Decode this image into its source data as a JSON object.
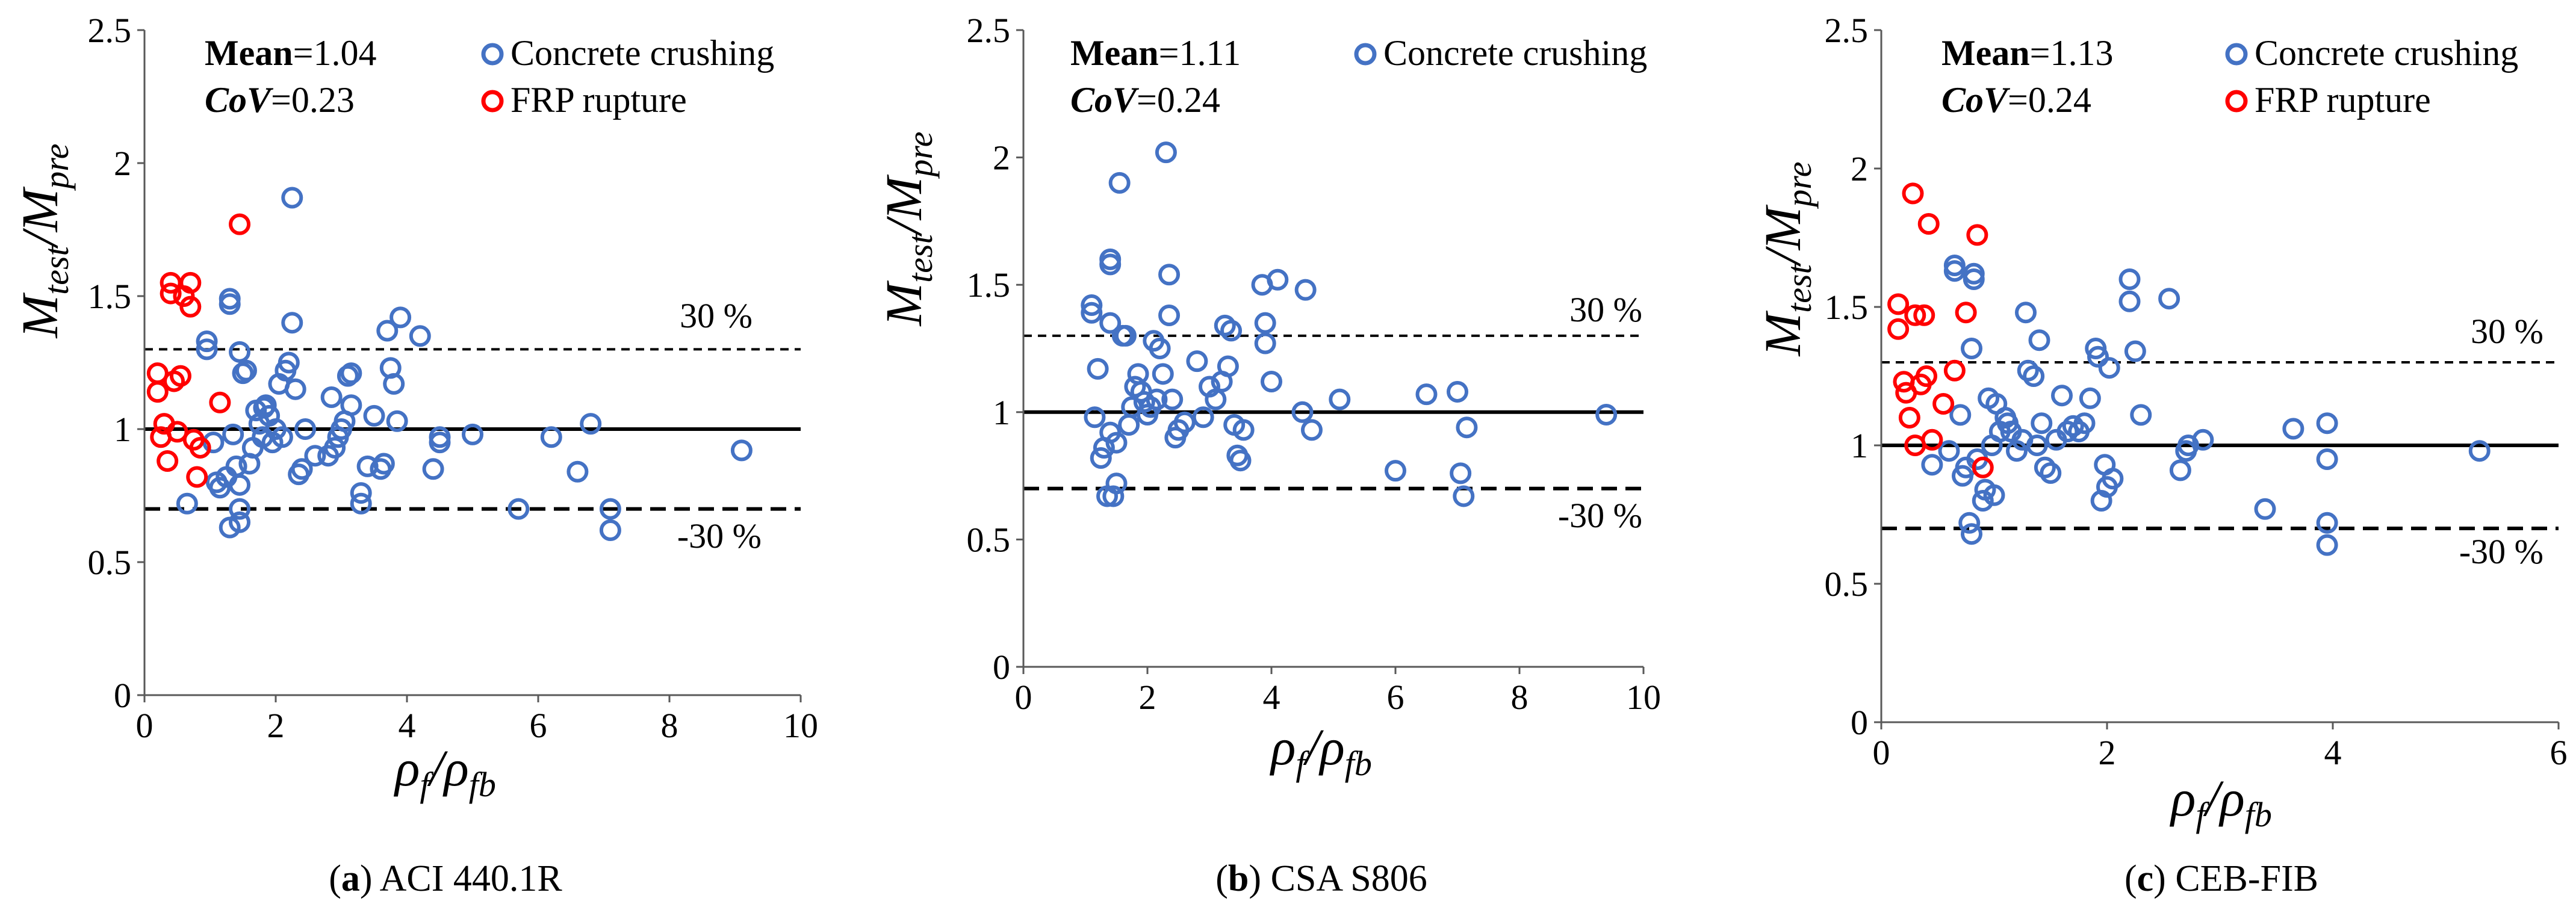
{
  "colors": {
    "crushing": "#4472C4",
    "rupture": "#FF0000",
    "axis": "#000000"
  },
  "chart_data": [
    {
      "type": "scatter",
      "caption_letter": "a",
      "caption": "ACI 440.1R",
      "xlabel": "ρf/ρfb",
      "ylabel": "Mtest/Mpre",
      "xlim": [
        0,
        10
      ],
      "ylim": [
        0,
        2.5
      ],
      "xticks": [
        "0",
        "2",
        "4",
        "6",
        "8",
        "10"
      ],
      "yticks": [
        "0",
        "0.5",
        "1",
        "1.5",
        "2",
        "2.5"
      ],
      "stats": {
        "mean_label": "Mean",
        "mean_value": "=1.04",
        "cov_label": "CoV",
        "cov_value": "=0.23"
      },
      "reference_lines": {
        "mean": 1.0,
        "upper": 1.3,
        "lower": 0.7,
        "upper_label": "30 %",
        "lower_label": "-30 %"
      },
      "series": [
        {
          "name": "Concrete crushing",
          "color_key": "crushing",
          "points": [
            [
              0.65,
              0.72
            ],
            [
              0.95,
              1.33
            ],
            [
              0.95,
              1.3
            ],
            [
              1.05,
              0.95
            ],
            [
              1.1,
              0.8
            ],
            [
              1.15,
              0.78
            ],
            [
              1.25,
              0.82
            ],
            [
              1.3,
              1.47
            ],
            [
              1.3,
              1.49
            ],
            [
              1.3,
              0.63
            ],
            [
              1.35,
              0.98
            ],
            [
              1.4,
              0.86
            ],
            [
              1.45,
              0.7
            ],
            [
              1.45,
              0.79
            ],
            [
              1.45,
              0.65
            ],
            [
              1.45,
              1.29
            ],
            [
              1.5,
              1.21
            ],
            [
              1.55,
              1.22
            ],
            [
              1.6,
              0.87
            ],
            [
              1.65,
              0.93
            ],
            [
              1.7,
              1.07
            ],
            [
              1.75,
              1.02
            ],
            [
              1.8,
              0.97
            ],
            [
              1.82,
              1.08
            ],
            [
              1.85,
              1.09
            ],
            [
              1.9,
              1.05
            ],
            [
              1.95,
              0.95
            ],
            [
              2.0,
              1.0
            ],
            [
              2.05,
              1.17
            ],
            [
              2.1,
              0.97
            ],
            [
              2.15,
              1.22
            ],
            [
              2.2,
              1.25
            ],
            [
              2.25,
              1.87
            ],
            [
              2.25,
              1.4
            ],
            [
              2.3,
              1.15
            ],
            [
              2.35,
              0.83
            ],
            [
              2.4,
              0.85
            ],
            [
              2.45,
              1.0
            ],
            [
              2.6,
              0.9
            ],
            [
              2.8,
              0.9
            ],
            [
              2.85,
              1.12
            ],
            [
              2.9,
              0.93
            ],
            [
              2.95,
              0.97
            ],
            [
              3.0,
              1.0
            ],
            [
              3.05,
              1.03
            ],
            [
              3.1,
              1.2
            ],
            [
              3.15,
              1.09
            ],
            [
              3.15,
              1.21
            ],
            [
              3.3,
              0.72
            ],
            [
              3.3,
              0.76
            ],
            [
              3.4,
              0.86
            ],
            [
              3.5,
              1.05
            ],
            [
              3.6,
              0.85
            ],
            [
              3.65,
              0.87
            ],
            [
              3.7,
              1.37
            ],
            [
              3.75,
              1.23
            ],
            [
              3.8,
              1.17
            ],
            [
              3.85,
              1.03
            ],
            [
              3.9,
              1.42
            ],
            [
              4.2,
              1.35
            ],
            [
              4.4,
              0.85
            ],
            [
              4.5,
              0.95
            ],
            [
              4.5,
              0.97
            ],
            [
              5.0,
              0.98
            ],
            [
              5.7,
              0.7
            ],
            [
              6.2,
              0.97
            ],
            [
              6.6,
              0.84
            ],
            [
              6.8,
              1.02
            ],
            [
              7.1,
              0.7
            ],
            [
              7.1,
              0.62
            ],
            [
              9.1,
              0.92
            ]
          ]
        },
        {
          "name": "FRP rupture",
          "color_key": "rupture",
          "points": [
            [
              0.2,
              1.21
            ],
            [
              0.2,
              1.14
            ],
            [
              0.25,
              0.97
            ],
            [
              0.3,
              1.02
            ],
            [
              0.35,
              0.88
            ],
            [
              0.4,
              1.55
            ],
            [
              0.4,
              1.51
            ],
            [
              0.45,
              1.18
            ],
            [
              0.5,
              0.99
            ],
            [
              0.55,
              1.2
            ],
            [
              0.6,
              1.5
            ],
            [
              0.7,
              1.55
            ],
            [
              0.7,
              1.46
            ],
            [
              0.75,
              0.96
            ],
            [
              0.8,
              0.82
            ],
            [
              0.85,
              0.93
            ],
            [
              1.15,
              1.1
            ],
            [
              1.45,
              1.77
            ]
          ]
        }
      ]
    },
    {
      "type": "scatter",
      "caption_letter": "b",
      "caption": "CSA S806",
      "xlabel": "ρf/ρfb",
      "ylabel": "Mtest/Mpre",
      "xlim": [
        0,
        10
      ],
      "ylim": [
        0,
        2.5
      ],
      "xticks": [
        "0",
        "2",
        "4",
        "6",
        "8",
        "10"
      ],
      "yticks": [
        "0",
        "0.5",
        "1",
        "1.5",
        "2",
        "2.5"
      ],
      "stats": {
        "mean_label": "Mean",
        "mean_value": "=1.11",
        "cov_label": "CoV",
        "cov_value": "=0.24"
      },
      "reference_lines": {
        "mean": 1.0,
        "upper": 1.3,
        "lower": 0.7,
        "upper_label": "30 %",
        "lower_label": "-30 %"
      },
      "series": [
        {
          "name": "Concrete crushing",
          "color_key": "crushing",
          "points": [
            [
              1.1,
              1.42
            ],
            [
              1.1,
              1.39
            ],
            [
              1.15,
              0.98
            ],
            [
              1.2,
              1.17
            ],
            [
              1.25,
              0.82
            ],
            [
              1.3,
              0.86
            ],
            [
              1.35,
              0.67
            ],
            [
              1.4,
              1.35
            ],
            [
              1.4,
              0.92
            ],
            [
              1.4,
              1.58
            ],
            [
              1.4,
              1.6
            ],
            [
              1.45,
              0.67
            ],
            [
              1.5,
              0.72
            ],
            [
              1.5,
              0.88
            ],
            [
              1.55,
              1.9
            ],
            [
              1.6,
              1.3
            ],
            [
              1.65,
              1.3
            ],
            [
              1.7,
              0.95
            ],
            [
              1.75,
              1.02
            ],
            [
              1.8,
              1.1
            ],
            [
              1.85,
              1.15
            ],
            [
              1.9,
              1.08
            ],
            [
              1.95,
              1.04
            ],
            [
              2.0,
              0.99
            ],
            [
              2.05,
              1.02
            ],
            [
              2.1,
              1.28
            ],
            [
              2.15,
              1.05
            ],
            [
              2.2,
              1.25
            ],
            [
              2.25,
              1.15
            ],
            [
              2.3,
              2.02
            ],
            [
              2.35,
              1.54
            ],
            [
              2.35,
              1.38
            ],
            [
              2.4,
              1.05
            ],
            [
              2.45,
              0.9
            ],
            [
              2.5,
              0.93
            ],
            [
              2.6,
              0.96
            ],
            [
              2.8,
              1.2
            ],
            [
              2.9,
              0.98
            ],
            [
              3.0,
              1.1
            ],
            [
              3.1,
              1.05
            ],
            [
              3.2,
              1.12
            ],
            [
              3.25,
              1.34
            ],
            [
              3.3,
              1.18
            ],
            [
              3.35,
              1.32
            ],
            [
              3.4,
              0.95
            ],
            [
              3.45,
              0.83
            ],
            [
              3.5,
              0.81
            ],
            [
              3.55,
              0.93
            ],
            [
              3.85,
              1.5
            ],
            [
              3.9,
              1.35
            ],
            [
              3.9,
              1.27
            ],
            [
              4.0,
              1.12
            ],
            [
              4.1,
              1.52
            ],
            [
              4.5,
              1.0
            ],
            [
              4.55,
              1.48
            ],
            [
              4.65,
              0.93
            ],
            [
              5.1,
              1.05
            ],
            [
              6.0,
              0.77
            ],
            [
              6.5,
              1.07
            ],
            [
              7.0,
              1.08
            ],
            [
              7.05,
              0.76
            ],
            [
              7.1,
              0.67
            ],
            [
              7.15,
              0.94
            ],
            [
              9.4,
              0.99
            ]
          ]
        }
      ]
    },
    {
      "type": "scatter",
      "caption_letter": "c",
      "caption": "CEB-FIB",
      "xlabel": "ρf/ρfb",
      "ylabel": "Mtest/Mpre",
      "xlim": [
        0,
        6
      ],
      "ylim": [
        0,
        2.5
      ],
      "xticks": [
        "0",
        "2",
        "4",
        "6"
      ],
      "yticks": [
        "0",
        "0.5",
        "1",
        "1.5",
        "2",
        "2.5"
      ],
      "stats": {
        "mean_label": "Mean",
        "mean_value": "=1.13",
        "cov_label": "CoV",
        "cov_value": "=0.24"
      },
      "reference_lines": {
        "mean": 1.0,
        "upper": 1.3,
        "lower": 0.7,
        "upper_label": "30 %",
        "lower_label": "-30 %"
      },
      "series": [
        {
          "name": "Concrete crushing",
          "color_key": "crushing",
          "points": [
            [
              0.45,
              0.93
            ],
            [
              0.6,
              0.98
            ],
            [
              0.65,
              1.63
            ],
            [
              0.65,
              1.65
            ],
            [
              0.7,
              1.11
            ],
            [
              0.72,
              0.89
            ],
            [
              0.75,
              0.92
            ],
            [
              0.78,
              0.72
            ],
            [
              0.8,
              0.68
            ],
            [
              0.82,
              1.6
            ],
            [
              0.82,
              1.62
            ],
            [
              0.8,
              1.35
            ],
            [
              0.85,
              0.95
            ],
            [
              0.9,
              0.8
            ],
            [
              0.92,
              0.84
            ],
            [
              0.95,
              1.17
            ],
            [
              0.98,
              1.0
            ],
            [
              1.0,
              0.82
            ],
            [
              1.02,
              1.15
            ],
            [
              1.05,
              1.05
            ],
            [
              1.1,
              1.1
            ],
            [
              1.12,
              1.08
            ],
            [
              1.15,
              1.05
            ],
            [
              1.2,
              0.98
            ],
            [
              1.25,
              1.02
            ],
            [
              1.28,
              1.48
            ],
            [
              1.3,
              1.27
            ],
            [
              1.35,
              1.25
            ],
            [
              1.38,
              1.0
            ],
            [
              1.4,
              1.38
            ],
            [
              1.42,
              1.08
            ],
            [
              1.45,
              0.92
            ],
            [
              1.5,
              0.9
            ],
            [
              1.55,
              1.02
            ],
            [
              1.6,
              1.18
            ],
            [
              1.65,
              1.05
            ],
            [
              1.7,
              1.07
            ],
            [
              1.75,
              1.05
            ],
            [
              1.8,
              1.08
            ],
            [
              1.85,
              1.17
            ],
            [
              1.9,
              1.35
            ],
            [
              1.92,
              1.32
            ],
            [
              1.95,
              0.8
            ],
            [
              1.98,
              0.93
            ],
            [
              2.0,
              0.85
            ],
            [
              2.02,
              1.28
            ],
            [
              2.05,
              0.88
            ],
            [
              2.2,
              1.6
            ],
            [
              2.2,
              1.52
            ],
            [
              2.25,
              1.34
            ],
            [
              2.3,
              1.11
            ],
            [
              2.55,
              1.53
            ],
            [
              2.65,
              0.91
            ],
            [
              2.7,
              0.98
            ],
            [
              2.72,
              1.0
            ],
            [
              2.85,
              1.02
            ],
            [
              3.4,
              0.77
            ],
            [
              3.65,
              1.06
            ],
            [
              3.95,
              1.08
            ],
            [
              3.95,
              0.95
            ],
            [
              3.95,
              0.72
            ],
            [
              3.95,
              0.64
            ],
            [
              5.3,
              0.98
            ]
          ]
        },
        {
          "name": "FRP rupture",
          "color_key": "rupture",
          "points": [
            [
              0.15,
              1.51
            ],
            [
              0.15,
              1.42
            ],
            [
              0.2,
              1.23
            ],
            [
              0.22,
              1.19
            ],
            [
              0.25,
              1.1
            ],
            [
              0.28,
              1.91
            ],
            [
              0.3,
              1.47
            ],
            [
              0.3,
              1.0
            ],
            [
              0.35,
              1.22
            ],
            [
              0.38,
              1.47
            ],
            [
              0.4,
              1.25
            ],
            [
              0.42,
              1.8
            ],
            [
              0.45,
              1.02
            ],
            [
              0.55,
              1.15
            ],
            [
              0.65,
              1.27
            ],
            [
              0.75,
              1.48
            ],
            [
              0.85,
              1.76
            ],
            [
              0.9,
              0.92
            ]
          ]
        }
      ]
    }
  ]
}
